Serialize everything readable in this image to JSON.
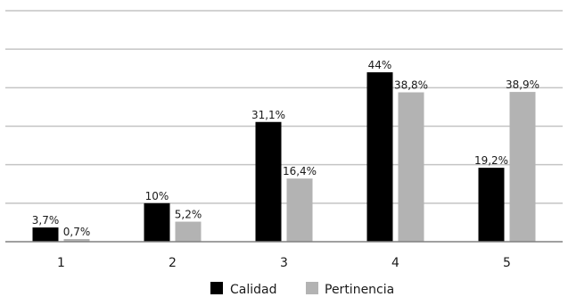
{
  "chart_data": {
    "type": "bar",
    "categories": [
      "1",
      "2",
      "3",
      "4",
      "5"
    ],
    "series": [
      {
        "name": "Calidad",
        "color": "#000000",
        "values": [
          3.7,
          10,
          31.1,
          44,
          19.2
        ],
        "labels": [
          "3,7%",
          "10%",
          "31,1%",
          "44%",
          "19,2%"
        ]
      },
      {
        "name": "Pertinencia",
        "color": "#b3b3b3",
        "values": [
          0.7,
          5.2,
          16.4,
          38.8,
          38.9
        ],
        "labels": [
          "0,7%",
          "5,2%",
          "16,4%",
          "38,8%",
          "38,9%"
        ]
      }
    ],
    "ylim": [
      0,
      60
    ],
    "grid": true,
    "legend": "bottom",
    "title": "",
    "xlabel": "",
    "ylabel": ""
  }
}
